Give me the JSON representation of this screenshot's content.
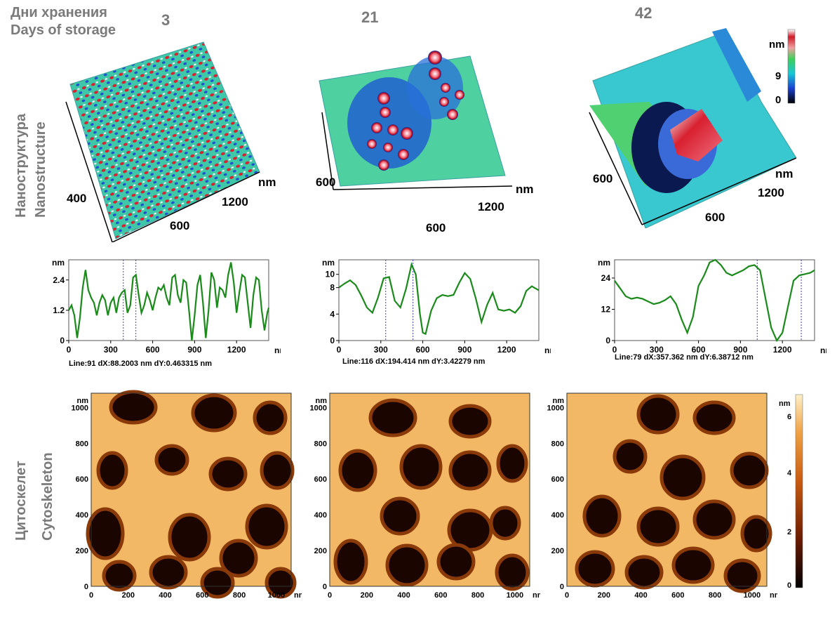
{
  "header": {
    "title_ru": "Дни хранения",
    "title_en": "Days of storage"
  },
  "columns": [
    {
      "day": "3"
    },
    {
      "day": "21"
    },
    {
      "day": "42"
    }
  ],
  "row_labels": {
    "nano_ru": "Наноструктура",
    "nano_en": "Nanostructure",
    "cyto_ru": "Цитоскелет",
    "cyto_en": "Cytoskeleton"
  },
  "surface_3d": [
    {
      "unit": "nm",
      "tick_a": "400",
      "tick_b": "600",
      "tick_c": "1200"
    },
    {
      "unit": "nm",
      "tick_a": "600",
      "tick_b": "600",
      "tick_c": "1200"
    },
    {
      "unit": "nm",
      "tick_a": "600",
      "tick_b": "600",
      "tick_c": "1200"
    }
  ],
  "surface_colorbar": {
    "unit": "nm",
    "ticks": [
      "9",
      "0"
    ],
    "colors": [
      "#000000",
      "#1a3fd0",
      "#17c6d8",
      "#3fd05a",
      "#f0a0a0",
      "#d01a2a",
      "#ffffff"
    ]
  },
  "chart_data": [
    {
      "type": "line",
      "ylabel": "nm",
      "xlabel": "nm",
      "ylim": [
        0,
        3.2
      ],
      "xlim": [
        0,
        1430
      ],
      "xticks": [
        "0",
        "300",
        "600",
        "900",
        "1200"
      ],
      "yticks": [
        "0",
        "1.2",
        "2.4"
      ],
      "info": "Line:91 dX:88.2003 nm  dY:0.463315 nm",
      "markers": [
        390,
        480
      ],
      "x": [
        0,
        20,
        40,
        60,
        80,
        100,
        120,
        140,
        160,
        180,
        200,
        220,
        240,
        260,
        280,
        300,
        320,
        340,
        360,
        380,
        400,
        420,
        440,
        460,
        480,
        500,
        520,
        540,
        560,
        580,
        600,
        620,
        640,
        660,
        680,
        700,
        720,
        740,
        760,
        780,
        800,
        820,
        840,
        860,
        880,
        900,
        920,
        940,
        960,
        980,
        1000,
        1020,
        1040,
        1060,
        1080,
        1100,
        1120,
        1140,
        1160,
        1180,
        1200,
        1220,
        1240,
        1260,
        1280,
        1300,
        1320,
        1340,
        1360,
        1380,
        1400,
        1420,
        1430
      ],
      "y": [
        1.2,
        1.4,
        1.0,
        0.1,
        0.9,
        2.1,
        2.8,
        2.0,
        1.7,
        1.5,
        1.0,
        1.5,
        1.8,
        1.6,
        1.0,
        1.5,
        1.7,
        1.1,
        1.7,
        1.9,
        2.0,
        1.1,
        1.4,
        2.5,
        2.6,
        1.8,
        1.1,
        1.4,
        1.9,
        1.6,
        1.2,
        1.7,
        2.1,
        2.0,
        2.2,
        1.7,
        1.4,
        2.5,
        2.6,
        1.8,
        1.5,
        2.4,
        2.3,
        1.2,
        0.0,
        1.0,
        2.2,
        2.6,
        1.5,
        0.1,
        1.2,
        2.7,
        2.4,
        1.3,
        2.1,
        2.0,
        1.7,
        2.6,
        3.1,
        2.3,
        1.1,
        1.9,
        2.6,
        2.5,
        1.5,
        0.5,
        1.8,
        2.5,
        2.4,
        1.2,
        0.4,
        1.1,
        1.3
      ]
    },
    {
      "type": "line",
      "ylabel": "nm",
      "xlabel": "nm",
      "ylim": [
        0,
        12.2
      ],
      "xlim": [
        0,
        1430
      ],
      "xticks": [
        "0",
        "300",
        "600",
        "900",
        "1200"
      ],
      "yticks": [
        "0",
        "4",
        "8",
        "10"
      ],
      "info": "Line:116 dX:194.414 nm  dY:3.42279 nm",
      "markers": [
        335,
        530
      ],
      "x": [
        0,
        40,
        80,
        120,
        160,
        200,
        240,
        280,
        320,
        360,
        400,
        440,
        480,
        520,
        550,
        580,
        600,
        620,
        660,
        700,
        740,
        780,
        820,
        860,
        900,
        940,
        980,
        1020,
        1060,
        1100,
        1140,
        1180,
        1220,
        1260,
        1300,
        1340,
        1380,
        1430
      ],
      "y": [
        8.0,
        8.6,
        9.1,
        8.4,
        6.8,
        5.0,
        4.2,
        6.5,
        9.4,
        9.6,
        6.0,
        5.0,
        7.8,
        11.5,
        10.0,
        4.0,
        1.2,
        1.0,
        4.5,
        6.4,
        6.9,
        6.7,
        6.9,
        8.7,
        10.2,
        9.3,
        6.3,
        2.8,
        5.4,
        7.2,
        4.7,
        4.5,
        4.7,
        4.2,
        5.2,
        7.5,
        8.2,
        7.6
      ]
    },
    {
      "type": "line",
      "ylabel": "nm",
      "xlabel": "nm",
      "ylim": [
        0,
        31
      ],
      "xlim": [
        0,
        1430
      ],
      "xticks": [
        "0",
        "300",
        "600",
        "900",
        "1200"
      ],
      "yticks": [
        "0",
        "12",
        "24"
      ],
      "info": "Line:79 dX:357.362 nm  dY:6.38712 nm",
      "markers": [
        1020,
        1335
      ],
      "x": [
        0,
        40,
        80,
        120,
        160,
        200,
        240,
        280,
        320,
        360,
        400,
        440,
        480,
        520,
        560,
        600,
        640,
        680,
        720,
        760,
        800,
        840,
        880,
        920,
        960,
        1000,
        1040,
        1080,
        1120,
        1160,
        1200,
        1240,
        1280,
        1320,
        1360,
        1400,
        1430
      ],
      "y": [
        23,
        20,
        17,
        16,
        16.5,
        16,
        15,
        14,
        14.5,
        15.5,
        17,
        14,
        8,
        3,
        9,
        21,
        25,
        30,
        31,
        29,
        26,
        25,
        26,
        27,
        28.5,
        29,
        27,
        16,
        5,
        0,
        3,
        13,
        23,
        25,
        25.5,
        26,
        27
      ]
    }
  ],
  "afm_maps": [
    {
      "unit": "nm",
      "xticks": [
        "0",
        "200",
        "400",
        "600",
        "800",
        "1000"
      ],
      "yticks": [
        "0",
        "200",
        "400",
        "600",
        "800",
        "1000"
      ]
    },
    {
      "unit": "nm",
      "xticks": [
        "0",
        "200",
        "400",
        "600",
        "800",
        "1000"
      ],
      "yticks": [
        "0",
        "200",
        "400",
        "600",
        "800",
        "1000"
      ]
    },
    {
      "unit": "nm",
      "xticks": [
        "0",
        "200",
        "400",
        "600",
        "800",
        "1000"
      ],
      "yticks": [
        "0",
        "200",
        "400",
        "600",
        "800",
        "1000"
      ]
    }
  ],
  "afm_colorbar": {
    "unit": "nm",
    "ticks": [
      "0",
      "2",
      "4",
      "6"
    ],
    "colors": [
      "#000000",
      "#6a1a00",
      "#c85a10",
      "#f0a040",
      "#fff0c8"
    ]
  },
  "colors": {
    "line": "#1a8a1a",
    "marker": "#4040d0",
    "label_gray": "#7a7a7a"
  }
}
